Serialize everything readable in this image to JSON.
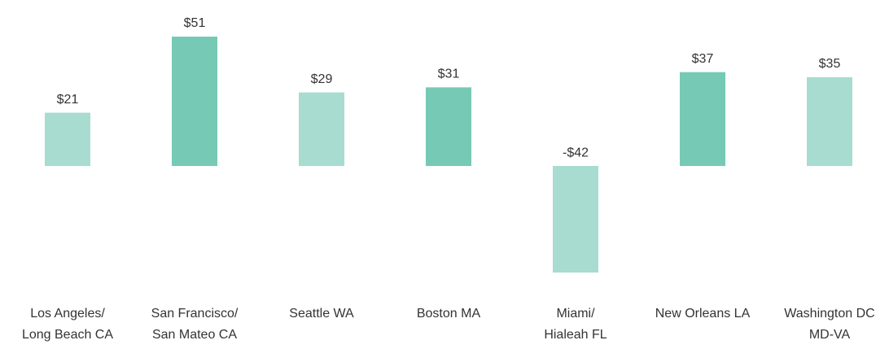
{
  "chart_data": {
    "type": "bar",
    "categories": [
      [
        "Los Angeles/",
        "Long Beach CA"
      ],
      [
        "San Francisco/",
        "San Mateo CA"
      ],
      [
        "Seattle WA"
      ],
      [
        "Boston MA"
      ],
      [
        "Miami/",
        "Hialeah FL"
      ],
      [
        "New Orleans LA"
      ],
      [
        "Washington DC",
        "MD-VA"
      ]
    ],
    "values": [
      21,
      51,
      29,
      31,
      -42,
      37,
      35
    ],
    "value_labels": [
      "$21",
      "$51",
      "$29",
      "$31",
      "-$42",
      "$37",
      "$35"
    ],
    "colors": [
      "#a8dcd0",
      "#76c9b5",
      "#a8dcd0",
      "#76c9b5",
      "#a8dcd0",
      "#76c9b5",
      "#a8dcd0"
    ]
  }
}
